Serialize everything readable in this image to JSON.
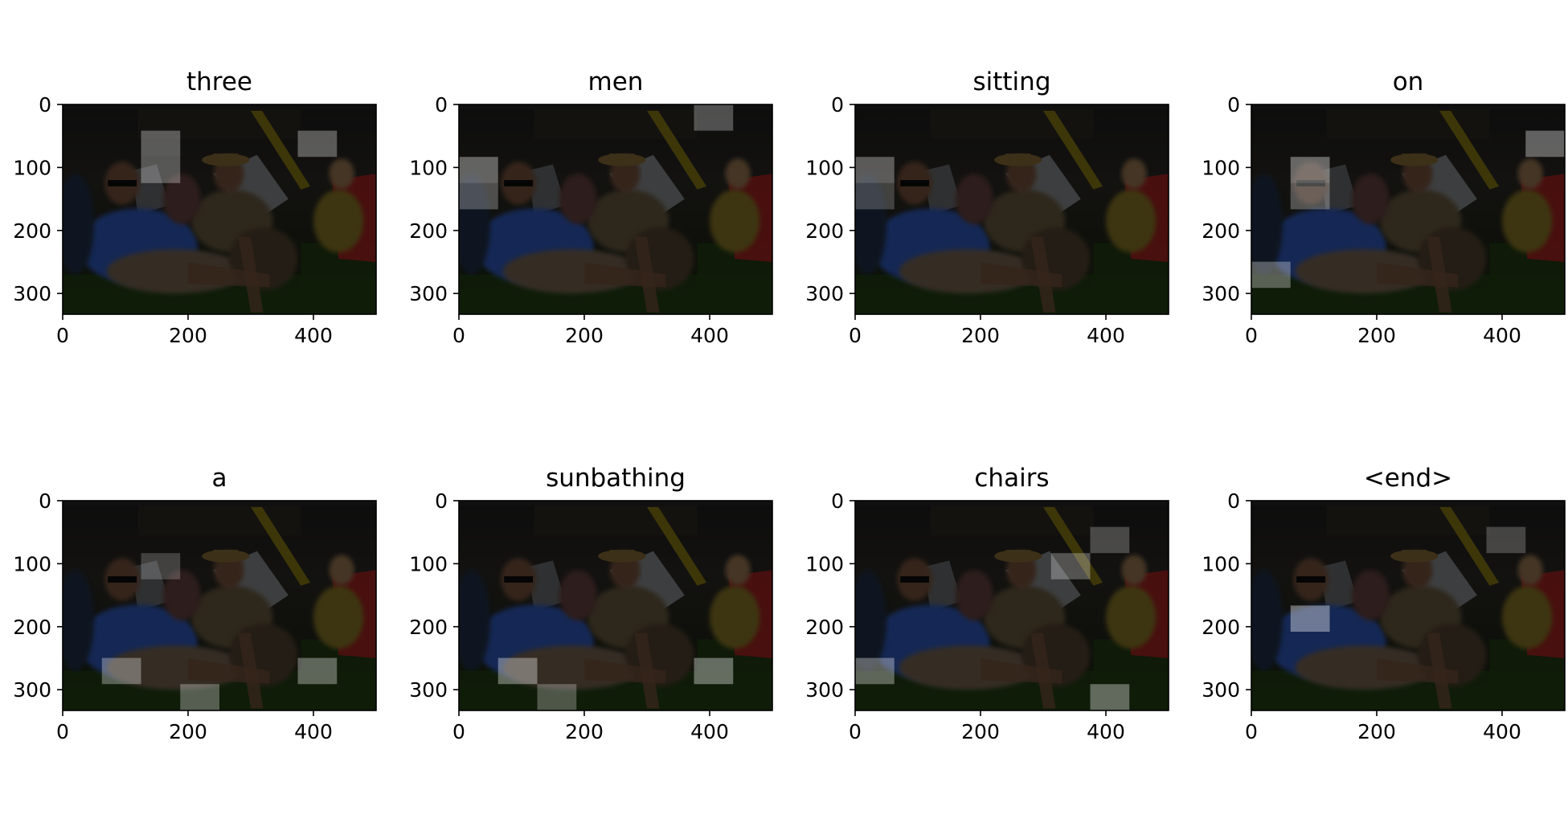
{
  "chart_data": {
    "type": "heatmap",
    "figure": {
      "rows": 2,
      "cols": 4,
      "image_extent": {
        "x": [
          0,
          500
        ],
        "y": [
          0,
          333
        ]
      },
      "xticks": [
        0,
        200,
        400
      ],
      "yticks": [
        0,
        100,
        200,
        300
      ],
      "xlim": [
        0,
        500
      ],
      "ylim": [
        333,
        0
      ],
      "grid": false,
      "attention_grid_cell": [
        62.5,
        41.6
      ]
    },
    "photo_palette": {
      "background": "#151515",
      "grass": "#1f3a12",
      "fence": "#2a2620",
      "blue_shirt": "#2a4fa8",
      "khaki_shirt": "#5c5038",
      "skin": "#6b4a36",
      "white_chair": "#8a8d92",
      "red_chair": "#9c1e1e",
      "yellow_top": "#7a6a20",
      "slide_yellow": "#8a7a10",
      "hat": "#7a6030"
    },
    "panels": [
      {
        "title": "three",
        "attention": [
          {
            "col": 2,
            "row": 1,
            "level": 0.6
          },
          {
            "col": 2,
            "row": 2,
            "level": 0.55
          },
          {
            "col": 6,
            "row": 1,
            "level": 0.6
          }
        ]
      },
      {
        "title": "men",
        "attention": [
          {
            "col": 0,
            "row": 2,
            "level": 0.7
          },
          {
            "col": 0,
            "row": 3,
            "level": 0.45
          },
          {
            "col": 6,
            "row": 0,
            "level": 0.5
          }
        ]
      },
      {
        "title": "sitting",
        "attention": [
          {
            "col": 0,
            "row": 2,
            "level": 0.6
          },
          {
            "col": 0,
            "row": 3,
            "level": 0.3
          }
        ]
      },
      {
        "title": "on",
        "attention": [
          {
            "col": 1,
            "row": 2,
            "level": 0.75
          },
          {
            "col": 1,
            "row": 3,
            "level": 0.5
          },
          {
            "col": 7,
            "row": 1,
            "level": 0.7
          },
          {
            "col": 0,
            "row": 6,
            "level": 0.6
          }
        ]
      },
      {
        "title": "a",
        "attention": [
          {
            "col": 1,
            "row": 6,
            "level": 0.6
          },
          {
            "col": 3,
            "row": 7,
            "level": 0.55
          },
          {
            "col": 6,
            "row": 6,
            "level": 0.65
          },
          {
            "col": 2,
            "row": 2,
            "level": 0.3
          }
        ]
      },
      {
        "title": "sunbathing",
        "attention": [
          {
            "col": 1,
            "row": 6,
            "level": 0.7
          },
          {
            "col": 6,
            "row": 6,
            "level": 0.75
          },
          {
            "col": 2,
            "row": 7,
            "level": 0.45
          }
        ]
      },
      {
        "title": "chairs",
        "attention": [
          {
            "col": 0,
            "row": 6,
            "level": 0.65
          },
          {
            "col": 6,
            "row": 7,
            "level": 0.7
          },
          {
            "col": 5,
            "row": 2,
            "level": 0.5
          },
          {
            "col": 6,
            "row": 1,
            "level": 0.4
          }
        ]
      },
      {
        "title": "<end>",
        "attention": [
          {
            "col": 1,
            "row": 4,
            "level": 0.8
          },
          {
            "col": 6,
            "row": 1,
            "level": 0.35
          }
        ]
      }
    ]
  }
}
